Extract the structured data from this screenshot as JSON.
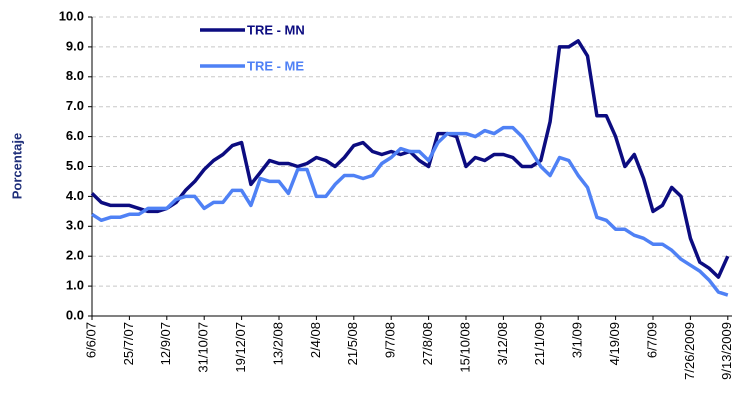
{
  "chart_data": {
    "type": "line",
    "y_label": "Porcentaje",
    "categories": [
      "6/6/07",
      null,
      null,
      null,
      "25/7/07",
      null,
      null,
      null,
      "12/9/07",
      null,
      null,
      null,
      "31/10/07",
      null,
      null,
      null,
      "19/12/07",
      null,
      null,
      null,
      "13/2/08",
      null,
      null,
      null,
      "2/4/08",
      null,
      null,
      null,
      "21/5/08",
      null,
      null,
      null,
      "9/7/08",
      null,
      null,
      null,
      "27/8/08",
      null,
      null,
      null,
      "15/10/08",
      null,
      null,
      null,
      "3/12/08",
      null,
      null,
      null,
      "21/1/09",
      null,
      null,
      null,
      "3/1/09",
      null,
      null,
      null,
      "4/19/09",
      null,
      null,
      null,
      "6/7/09",
      null,
      null,
      null,
      "7/26/2009",
      null,
      null,
      null,
      "9/13/2009"
    ],
    "series": [
      {
        "name": "TRE - MN",
        "color": "#0c0c80",
        "values": [
          4.1,
          3.8,
          3.7,
          3.7,
          3.7,
          3.6,
          3.5,
          3.5,
          3.6,
          3.8,
          4.2,
          4.5,
          4.9,
          5.2,
          5.4,
          5.7,
          5.8,
          4.4,
          4.8,
          5.2,
          5.1,
          5.1,
          5.0,
          5.1,
          5.3,
          5.2,
          5.0,
          5.3,
          5.7,
          5.8,
          5.5,
          5.4,
          5.5,
          5.4,
          5.5,
          5.2,
          5.0,
          6.1,
          6.1,
          6.0,
          5.0,
          5.3,
          5.2,
          5.4,
          5.4,
          5.3,
          5.0,
          5.0,
          5.2,
          6.5,
          9.0,
          9.0,
          9.2,
          8.7,
          6.7,
          6.7,
          6.0,
          5.0,
          5.4,
          4.6,
          3.5,
          3.7,
          4.3,
          4.0,
          2.6,
          1.8,
          1.6,
          1.3,
          2.0
        ]
      },
      {
        "name": "TRE - ME",
        "color": "#4f81f5",
        "values": [
          3.4,
          3.2,
          3.3,
          3.3,
          3.4,
          3.4,
          3.6,
          3.6,
          3.6,
          3.9,
          4.0,
          4.0,
          3.6,
          3.8,
          3.8,
          4.2,
          4.2,
          3.7,
          4.6,
          4.5,
          4.5,
          4.1,
          4.9,
          4.9,
          4.0,
          4.0,
          4.4,
          4.7,
          4.7,
          4.6,
          4.7,
          5.1,
          5.3,
          5.6,
          5.5,
          5.5,
          5.2,
          5.8,
          6.1,
          6.1,
          6.1,
          6.0,
          6.2,
          6.1,
          6.3,
          6.3,
          6.0,
          5.5,
          5.0,
          4.7,
          5.3,
          5.2,
          4.7,
          4.3,
          3.3,
          3.2,
          2.9,
          2.9,
          2.7,
          2.6,
          2.4,
          2.4,
          2.2,
          1.9,
          1.7,
          1.5,
          1.2,
          0.8,
          0.7
        ]
      }
    ],
    "ylim": [
      0,
      10
    ],
    "yticks": [
      {
        "value": 0,
        "label": "0.0"
      },
      {
        "value": 1,
        "label": "1.0"
      },
      {
        "value": 2,
        "label": "2.0"
      },
      {
        "value": 3,
        "label": "3.0"
      },
      {
        "value": 4,
        "label": "4.0"
      },
      {
        "value": 5,
        "label": "5.0"
      },
      {
        "value": 6,
        "label": "6.0"
      },
      {
        "value": 7,
        "label": "7.0"
      },
      {
        "value": 8,
        "label": "8.0"
      },
      {
        "value": 9,
        "label": "9.0"
      },
      {
        "value": 10,
        "label": "10.0"
      }
    ],
    "grid": true,
    "legend": "top-left"
  }
}
